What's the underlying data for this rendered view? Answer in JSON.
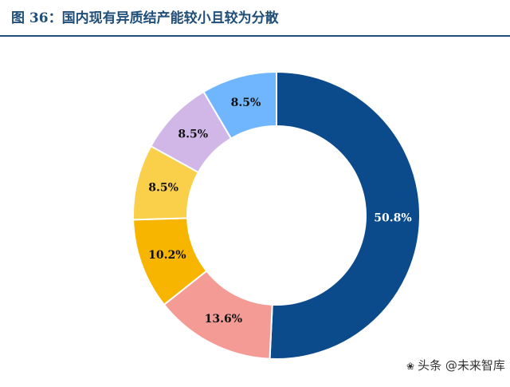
{
  "figure": {
    "title": "图 36：国内现有异质结产能较小且较为分散"
  },
  "chart_data": {
    "type": "pie",
    "variant": "donut",
    "title": "图 36：国内现有异质结产能较小且较为分散",
    "slices": [
      {
        "label": "50.8%",
        "value": 50.8,
        "color": "#0b4a8b"
      },
      {
        "label": "13.6%",
        "value": 13.6,
        "color": "#f59b95"
      },
      {
        "label": "10.2%",
        "value": 10.2,
        "color": "#f7b500"
      },
      {
        "label": "8.5%",
        "value": 8.5,
        "color": "#fad04a"
      },
      {
        "label": "8.5%",
        "value": 8.5,
        "color": "#d1b6e8"
      },
      {
        "label": "8.5%",
        "value": 8.5,
        "color": "#6fb6ff"
      }
    ],
    "legend": "none",
    "start_angle": "12 o'clock",
    "direction": "clockwise"
  },
  "watermark": {
    "icon": "wechat-icon",
    "text": "头条 @未来智库"
  }
}
